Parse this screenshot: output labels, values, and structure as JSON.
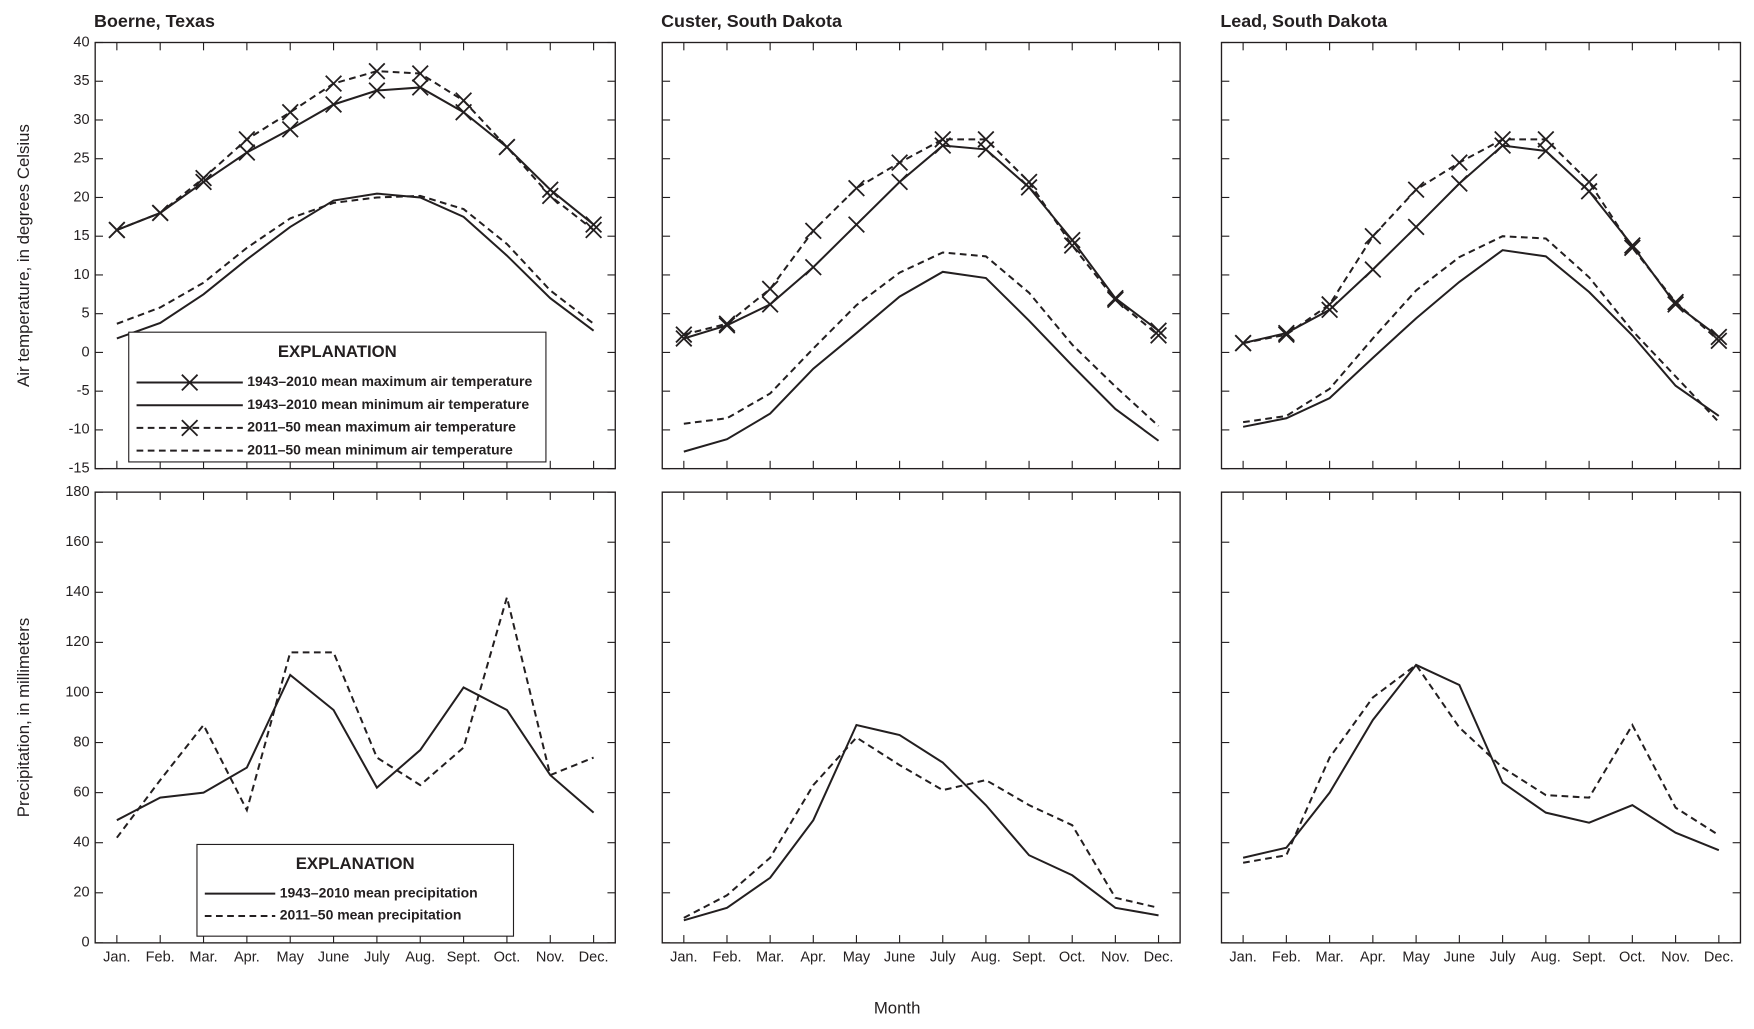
{
  "chart_data": [
    {
      "type": "line",
      "title": "Boerne, Texas",
      "ylabel": "Air temperature, in degrees Celsius",
      "categories": [
        "Jan.",
        "Feb.",
        "Mar.",
        "Apr.",
        "May",
        "June",
        "July",
        "Aug.",
        "Sept.",
        "Oct.",
        "Nov.",
        "Dec."
      ],
      "ylim": [
        -15,
        40
      ],
      "yticks": [
        -15,
        -10,
        -5,
        0,
        5,
        10,
        15,
        20,
        25,
        30,
        35,
        40
      ],
      "legend_title": "EXPLANATION",
      "legend": "lower center",
      "series": [
        {
          "name": "1943–2010 mean maximum air temperature",
          "color": "#231f20",
          "dash": false,
          "marker": "x",
          "values": [
            15.8,
            18,
            22,
            25.8,
            28.8,
            32,
            33.8,
            34.2,
            31,
            26.5,
            21,
            16.5
          ]
        },
        {
          "name": "1943–2010 mean minimum air temperature",
          "color": "#231f20",
          "dash": false,
          "values": [
            1.8,
            3.8,
            7.5,
            12,
            16.2,
            19.6,
            20.5,
            20,
            17.5,
            12.5,
            7,
            2.8
          ]
        },
        {
          "name": "2011–50 mean maximum air temperature",
          "color": "#231f20",
          "dash": true,
          "marker": "x",
          "values": [
            15.8,
            18,
            22.5,
            27.5,
            31,
            34.7,
            36.3,
            36,
            32.5,
            26.5,
            20.2,
            15.8
          ]
        },
        {
          "name": "2011–50 mean minimum air temperature",
          "color": "#231f20",
          "dash": true,
          "values": [
            3.7,
            5.8,
            9,
            13.5,
            17.3,
            19.3,
            20,
            20.2,
            18.5,
            14,
            8,
            3.7
          ]
        }
      ]
    },
    {
      "type": "line",
      "title": "Custer, South Dakota",
      "categories": [
        "Jan.",
        "Feb.",
        "Mar.",
        "Apr.",
        "May",
        "June",
        "July",
        "Aug.",
        "Sept.",
        "Oct.",
        "Nov.",
        "Dec."
      ],
      "ylim": [
        -15,
        40
      ],
      "yticks": [
        -15,
        -10,
        -5,
        0,
        5,
        10,
        15,
        20,
        25,
        30,
        35,
        40
      ],
      "series": [
        {
          "color": "#231f20",
          "dash": false,
          "marker": "x",
          "values": [
            1.8,
            3.5,
            6.2,
            11,
            16.5,
            22,
            26.7,
            26.2,
            21.3,
            14.5,
            7,
            2.8
          ]
        },
        {
          "color": "#231f20",
          "dash": false,
          "values": [
            -12.8,
            -11.2,
            -7.9,
            -2.1,
            2.5,
            7.2,
            10.4,
            9.6,
            4.1,
            -1.7,
            -7.3,
            -11.4
          ]
        },
        {
          "color": "#231f20",
          "dash": true,
          "marker": "x",
          "values": [
            2.3,
            3.7,
            8.2,
            15.7,
            21.2,
            24.5,
            27.5,
            27.5,
            22,
            13.8,
            6.8,
            2.2
          ]
        },
        {
          "color": "#231f20",
          "dash": true,
          "values": [
            -9.2,
            -8.5,
            -5.3,
            0.5,
            6.1,
            10.3,
            12.9,
            12.4,
            7.7,
            1,
            -4.4,
            -9.5
          ]
        }
      ]
    },
    {
      "type": "line",
      "title": "Lead, South Dakota",
      "categories": [
        "Jan.",
        "Feb.",
        "Mar.",
        "Apr.",
        "May",
        "June",
        "July",
        "Aug.",
        "Sept.",
        "Oct.",
        "Nov.",
        "Dec."
      ],
      "ylim": [
        -15,
        40
      ],
      "yticks": [
        -15,
        -10,
        -5,
        0,
        5,
        10,
        15,
        20,
        25,
        30,
        35,
        40
      ],
      "series": [
        {
          "color": "#231f20",
          "dash": false,
          "marker": "x",
          "values": [
            1.2,
            2.5,
            5.5,
            10.7,
            16.2,
            21.8,
            26.7,
            26,
            20.8,
            13.8,
            6.2,
            2
          ]
        },
        {
          "color": "#231f20",
          "dash": false,
          "values": [
            -9.6,
            -8.5,
            -5.9,
            -0.7,
            4.4,
            9.1,
            13.2,
            12.4,
            7.8,
            2.2,
            -4.3,
            -8.2
          ]
        },
        {
          "color": "#231f20",
          "dash": true,
          "marker": "x",
          "values": [
            1.2,
            2.3,
            6.2,
            15,
            21,
            24.5,
            27.5,
            27.5,
            22,
            13.5,
            6.5,
            1.5
          ]
        },
        {
          "color": "#231f20",
          "dash": true,
          "values": [
            -9,
            -8.2,
            -4.7,
            1.8,
            8,
            12.3,
            15,
            14.7,
            9.7,
            2.8,
            -3.1,
            -9
          ]
        }
      ]
    },
    {
      "type": "line",
      "ylabel": "Precipitation, in millimeters",
      "categories": [
        "Jan.",
        "Feb.",
        "Mar.",
        "Apr.",
        "May",
        "June",
        "July",
        "Aug.",
        "Sept.",
        "Oct.",
        "Nov.",
        "Dec."
      ],
      "ylim": [
        0,
        180
      ],
      "yticks": [
        0,
        20,
        40,
        60,
        80,
        100,
        120,
        140,
        160,
        180
      ],
      "legend_title": "EXPLANATION",
      "legend": "lower left",
      "series": [
        {
          "name": "1943–2010 mean precipitation",
          "color": "#231f20",
          "dash": false,
          "values": [
            49,
            58,
            60,
            70,
            107,
            93,
            62,
            77,
            102,
            93,
            67,
            52
          ]
        },
        {
          "name": "2011–50 mean precipitation",
          "color": "#231f20",
          "dash": true,
          "values": [
            42,
            65,
            87,
            53,
            116,
            116,
            74,
            63,
            78,
            138,
            67,
            74
          ]
        }
      ]
    },
    {
      "type": "line",
      "xlabel": "Month",
      "categories": [
        "Jan.",
        "Feb.",
        "Mar.",
        "Apr.",
        "May",
        "June",
        "July",
        "Aug.",
        "Sept.",
        "Oct.",
        "Nov.",
        "Dec."
      ],
      "ylim": [
        0,
        180
      ],
      "yticks": [
        0,
        20,
        40,
        60,
        80,
        100,
        120,
        140,
        160,
        180
      ],
      "series": [
        {
          "color": "#231f20",
          "dash": false,
          "values": [
            9,
            14,
            26,
            49,
            87,
            83,
            72,
            55,
            35,
            27,
            14,
            11
          ]
        },
        {
          "color": "#231f20",
          "dash": true,
          "values": [
            10,
            19,
            34,
            63,
            82,
            71,
            61,
            65,
            55,
            47,
            18,
            14
          ]
        }
      ]
    },
    {
      "type": "line",
      "categories": [
        "Jan.",
        "Feb.",
        "Mar.",
        "Apr.",
        "May",
        "June",
        "July",
        "Aug.",
        "Sept.",
        "Oct.",
        "Nov.",
        "Dec."
      ],
      "ylim": [
        0,
        180
      ],
      "yticks": [
        0,
        20,
        40,
        60,
        80,
        100,
        120,
        140,
        160,
        180
      ],
      "series": [
        {
          "color": "#231f20",
          "dash": false,
          "values": [
            34,
            38,
            60,
            89,
            111,
            103,
            64,
            52,
            48,
            55,
            44,
            37
          ]
        },
        {
          "color": "#231f20",
          "dash": true,
          "values": [
            32,
            35,
            74,
            98,
            111,
            86,
            70,
            59,
            58,
            87,
            54,
            43
          ]
        }
      ]
    }
  ]
}
